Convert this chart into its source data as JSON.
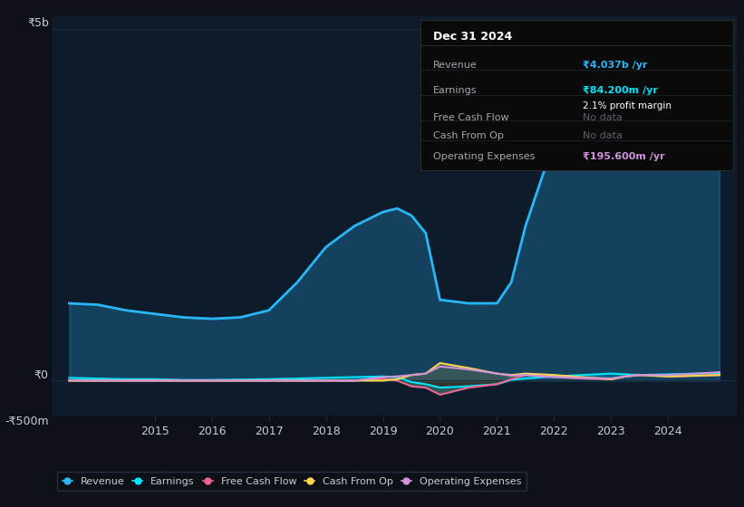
{
  "bg_color": "#0d1117",
  "plot_bg_color": "#0d1b2a",
  "grid_color": "#1e2d3d",
  "text_color": "#c8cdd2",
  "title_color": "#ffffff",
  "ylim": [
    -500,
    5200
  ],
  "years": [
    2013.5,
    2014,
    2014.5,
    2015,
    2015.5,
    2016,
    2016.5,
    2017,
    2017.5,
    2018,
    2018.5,
    2019,
    2019.25,
    2019.5,
    2019.75,
    2020,
    2020.5,
    2021,
    2021.25,
    2021.5,
    2022,
    2022.5,
    2023,
    2023.25,
    2023.5,
    2024,
    2024.5,
    2024.9
  ],
  "revenue": [
    1100,
    1080,
    1000,
    950,
    900,
    880,
    900,
    1000,
    1400,
    1900,
    2200,
    2400,
    2450,
    2350,
    2100,
    1150,
    1100,
    1100,
    1400,
    2200,
    3400,
    4000,
    4500,
    4200,
    4100,
    4300,
    4700,
    4800
  ],
  "earnings": [
    40,
    30,
    20,
    20,
    10,
    10,
    15,
    20,
    30,
    40,
    50,
    60,
    50,
    -20,
    -50,
    -100,
    -80,
    -50,
    10,
    30,
    60,
    80,
    100,
    90,
    80,
    90,
    100,
    105
  ],
  "free_cash_flow": [
    0,
    0,
    0,
    0,
    0,
    0,
    0,
    0,
    0,
    0,
    0,
    30,
    0,
    -80,
    -100,
    -200,
    -100,
    -50,
    20,
    80,
    50,
    30,
    20,
    60,
    80,
    60,
    70,
    80
  ],
  "cash_from_op": [
    0,
    0,
    0,
    0,
    0,
    0,
    0,
    0,
    0,
    0,
    0,
    0,
    20,
    80,
    100,
    250,
    180,
    100,
    80,
    100,
    80,
    50,
    20,
    60,
    80,
    60,
    70,
    80
  ],
  "operating_expenses": [
    0,
    0,
    0,
    0,
    0,
    0,
    0,
    0,
    0,
    0,
    0,
    50,
    60,
    80,
    100,
    200,
    160,
    100,
    70,
    80,
    50,
    40,
    30,
    60,
    80,
    80,
    100,
    120
  ],
  "revenue_color": "#29b6f6",
  "earnings_color": "#00e5ff",
  "free_cash_flow_color": "#f06292",
  "cash_from_op_color": "#ffd54f",
  "operating_expenses_color": "#ce93d8",
  "legend_labels": [
    "Revenue",
    "Earnings",
    "Free Cash Flow",
    "Cash From Op",
    "Operating Expenses"
  ],
  "legend_colors": [
    "#29b6f6",
    "#00e5ff",
    "#f06292",
    "#ffd54f",
    "#ce93d8"
  ],
  "info_box": {
    "title": "Dec 31 2024",
    "revenue_label": "Revenue",
    "revenue_value": "₹4.037b /yr",
    "revenue_color": "#29b6f6",
    "earnings_label": "Earnings",
    "earnings_value": "₹84.200m /yr",
    "earnings_color": "#00e5ff",
    "margin_text": "2.1% profit margin",
    "fcf_label": "Free Cash Flow",
    "fcf_value": "No data",
    "cashop_label": "Cash From Op",
    "cashop_value": "No data",
    "opex_label": "Operating Expenses",
    "opex_value": "₹195.600m /yr",
    "opex_color": "#ce93d8",
    "bg_color": "#0a0a0a",
    "border_color": "#2a2a2a",
    "label_color": "#a0a8b0",
    "value_color": "#a0a8b0",
    "title_color": "#ffffff"
  },
  "xlim": [
    2013.2,
    2025.2
  ],
  "x_ticks": [
    2015,
    2016,
    2017,
    2018,
    2019,
    2020,
    2021,
    2022,
    2023,
    2024
  ]
}
